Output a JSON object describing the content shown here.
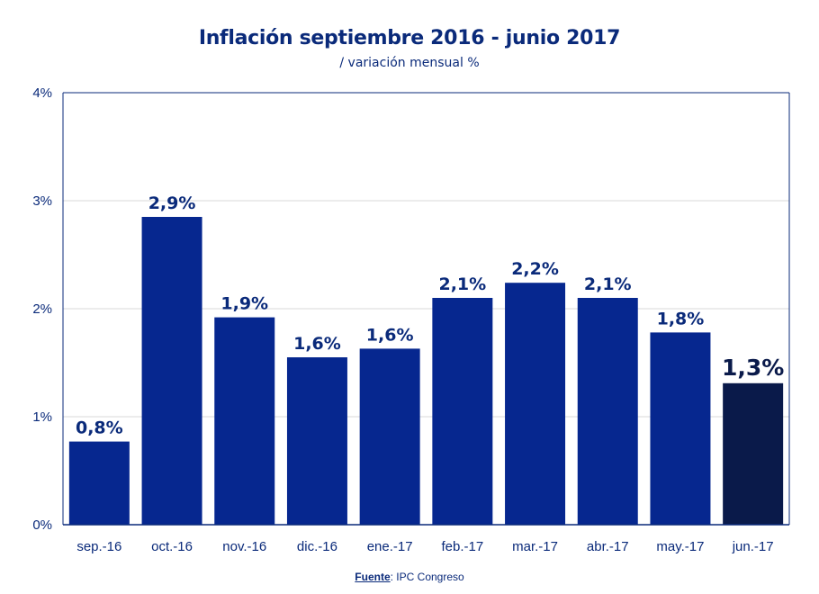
{
  "chart_data": {
    "type": "bar",
    "title": "Inflación septiembre 2016 - junio 2017",
    "subtitle": "/ variación mensual %",
    "categories": [
      "sep.-16",
      "oct.-16",
      "nov.-16",
      "dic.-16",
      "ene.-17",
      "feb.-17",
      "mar.-17",
      "abr.-17",
      "may.-17",
      "jun.-17"
    ],
    "values": [
      0.77,
      2.85,
      1.92,
      1.55,
      1.63,
      2.1,
      2.24,
      2.1,
      1.78,
      1.31
    ],
    "data_labels": [
      "0,8%",
      "2,9%",
      "1,9%",
      "1,6%",
      "1,6%",
      "2,1%",
      "2,2%",
      "2,1%",
      "1,8%",
      "1,3%"
    ],
    "y_ticks": [
      0,
      1,
      2,
      3,
      4
    ],
    "y_tick_labels": [
      "0%",
      "1%",
      "2%",
      "3%",
      "4%"
    ],
    "ylim": [
      0,
      4
    ],
    "xlabel": "",
    "ylabel": "",
    "grid": true,
    "highlight_index": 9,
    "colors": {
      "bar": "#06278f",
      "highlight": "#0a1a4a",
      "grid": "#d9d9d9",
      "axis": "#0a2a7a",
      "text": "#0a2a7a"
    }
  },
  "source": {
    "label": "Fuente",
    "text": ": IPC Congreso"
  }
}
